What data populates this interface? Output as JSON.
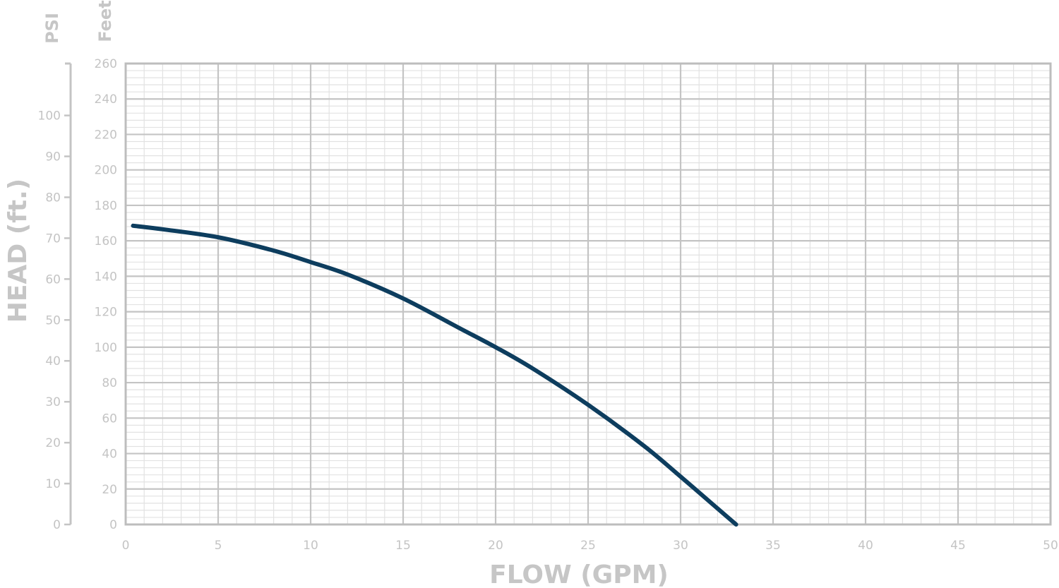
{
  "chart_data": {
    "type": "line",
    "title": "",
    "xlabel": "FLOW (GPM)",
    "ylabel": "HEAD (ft.)",
    "y_left_label": "PSI",
    "y_right_label": "Feet",
    "xlim": [
      0,
      50
    ],
    "ylim": [
      0,
      260
    ],
    "psi_lim": [
      0,
      112.7
    ],
    "x_ticks": [
      "0",
      "5",
      "10",
      "15",
      "20",
      "25",
      "30",
      "35",
      "40",
      "45",
      "50"
    ],
    "feet_ticks": [
      "0",
      "20",
      "40",
      "60",
      "80",
      "100",
      "120",
      "140",
      "160",
      "180",
      "200",
      "220",
      "240",
      "260"
    ],
    "psi_ticks": [
      "0",
      "10",
      "20",
      "30",
      "40",
      "50",
      "60",
      "70",
      "80",
      "90",
      "100"
    ],
    "grid": true,
    "colors": {
      "curve": "#0d3d5e",
      "grid_major": "#c4c4c4",
      "grid_minor": "#e2e2e2",
      "text": "#c4c4c4"
    },
    "series": [
      {
        "x": [
          0.4,
          2,
          5,
          8,
          10,
          12,
          15,
          18,
          20,
          22,
          25,
          28,
          30,
          32,
          33
        ],
        "y": [
          168.5,
          166.5,
          162,
          154.5,
          148,
          141,
          127.5,
          111,
          100,
          88,
          67.5,
          44.5,
          27,
          9,
          0
        ]
      }
    ]
  }
}
